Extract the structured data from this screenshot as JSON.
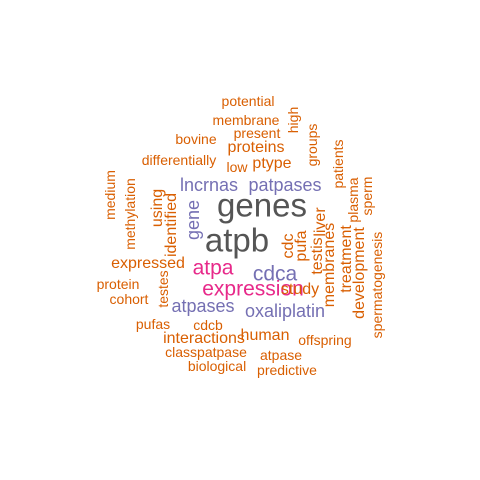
{
  "palette": {
    "orange": "#D95F02",
    "purple": "#7570B3",
    "magenta": "#E7298A",
    "gray": "#555555"
  },
  "words": [
    {
      "text": "potential",
      "color": "orange",
      "weight": 1
    },
    {
      "text": "membrane",
      "color": "orange",
      "weight": 1
    },
    {
      "text": "high",
      "color": "orange",
      "weight": 1,
      "vertical": true
    },
    {
      "text": "present",
      "color": "orange",
      "weight": 1
    },
    {
      "text": "bovine",
      "color": "orange",
      "weight": 1
    },
    {
      "text": "groups",
      "color": "orange",
      "weight": 1,
      "vertical": true
    },
    {
      "text": "proteins",
      "color": "orange",
      "weight": 2
    },
    {
      "text": "patients",
      "color": "orange",
      "weight": 1,
      "vertical": true
    },
    {
      "text": "differentially",
      "color": "orange",
      "weight": 1
    },
    {
      "text": "low",
      "color": "orange",
      "weight": 1
    },
    {
      "text": "ptype",
      "color": "orange",
      "weight": 2
    },
    {
      "text": "medium",
      "color": "orange",
      "weight": 1,
      "vertical": true
    },
    {
      "text": "lncrnas",
      "color": "purple",
      "weight": 3
    },
    {
      "text": "patpases",
      "color": "purple",
      "weight": 3
    },
    {
      "text": "plasma",
      "color": "orange",
      "weight": 1,
      "vertical": true
    },
    {
      "text": "sperm",
      "color": "orange",
      "weight": 1,
      "vertical": true
    },
    {
      "text": "methylation",
      "color": "orange",
      "weight": 1,
      "vertical": true
    },
    {
      "text": "using",
      "color": "orange",
      "weight": 2,
      "vertical": true
    },
    {
      "text": "identified",
      "color": "orange",
      "weight": 2,
      "vertical": true
    },
    {
      "text": "gene",
      "color": "purple",
      "weight": 3,
      "vertical": true
    },
    {
      "text": "genes",
      "color": "gray",
      "weight": 6
    },
    {
      "text": "liver",
      "color": "orange",
      "weight": 2,
      "vertical": true
    },
    {
      "text": "atpb",
      "color": "gray",
      "weight": 6
    },
    {
      "text": "cdc",
      "color": "orange",
      "weight": 2,
      "vertical": true
    },
    {
      "text": "pufa",
      "color": "orange",
      "weight": 2,
      "vertical": true
    },
    {
      "text": "testis",
      "color": "orange",
      "weight": 2,
      "vertical": true
    },
    {
      "text": "membranes",
      "color": "orange",
      "weight": 2,
      "vertical": true
    },
    {
      "text": "treatment",
      "color": "orange",
      "weight": 2,
      "vertical": true
    },
    {
      "text": "development",
      "color": "orange",
      "weight": 2,
      "vertical": true
    },
    {
      "text": "spermatogenesis",
      "color": "orange",
      "weight": 1,
      "vertical": true
    },
    {
      "text": "expressed",
      "color": "orange",
      "weight": 2
    },
    {
      "text": "atpa",
      "color": "magenta",
      "weight": 4
    },
    {
      "text": "cdca",
      "color": "purple",
      "weight": 4
    },
    {
      "text": "protein",
      "color": "orange",
      "weight": 1
    },
    {
      "text": "testes",
      "color": "orange",
      "weight": 1,
      "vertical": true
    },
    {
      "text": "expression",
      "color": "magenta",
      "weight": 4
    },
    {
      "text": "study",
      "color": "orange",
      "weight": 2
    },
    {
      "text": "cohort",
      "color": "orange",
      "weight": 1
    },
    {
      "text": "atpases",
      "color": "purple",
      "weight": 3
    },
    {
      "text": "oxaliplatin",
      "color": "purple",
      "weight": 3
    },
    {
      "text": "pufas",
      "color": "orange",
      "weight": 1
    },
    {
      "text": "cdcb",
      "color": "orange",
      "weight": 1
    },
    {
      "text": "human",
      "color": "orange",
      "weight": 2
    },
    {
      "text": "interactions",
      "color": "orange",
      "weight": 2
    },
    {
      "text": "offspring",
      "color": "orange",
      "weight": 1
    },
    {
      "text": "classpatpase",
      "color": "orange",
      "weight": 1
    },
    {
      "text": "atpase",
      "color": "orange",
      "weight": 1
    },
    {
      "text": "biological",
      "color": "orange",
      "weight": 1
    },
    {
      "text": "predictive",
      "color": "orange",
      "weight": 1
    }
  ]
}
